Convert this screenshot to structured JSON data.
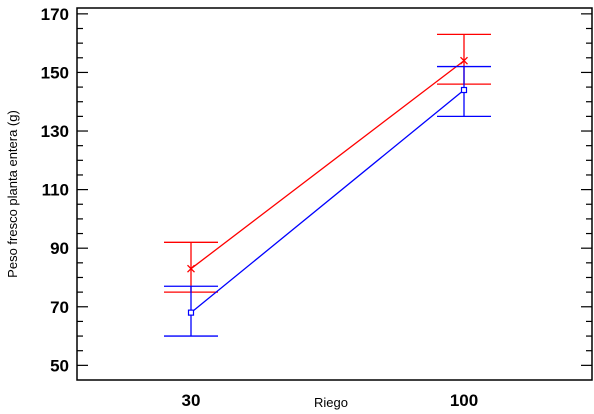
{
  "chart_data": {
    "type": "line",
    "title": "",
    "xlabel": "Riego",
    "ylabel": "Peso fresco planta entera (g)",
    "categories": [
      "30",
      "100"
    ],
    "ylim": [
      45,
      172
    ],
    "yticks": [
      50,
      70,
      90,
      110,
      130,
      150,
      170
    ],
    "grid": false,
    "error_bars": true,
    "series": [
      {
        "color": "#ff0000",
        "marker": "x",
        "values": [
          83,
          154
        ],
        "error_low": [
          75,
          146
        ],
        "error_high": [
          92,
          163
        ]
      },
      {
        "color": "#0000ff",
        "marker": "square",
        "values": [
          68,
          144
        ],
        "error_low": [
          60,
          135
        ],
        "error_high": [
          77,
          152
        ]
      }
    ]
  }
}
